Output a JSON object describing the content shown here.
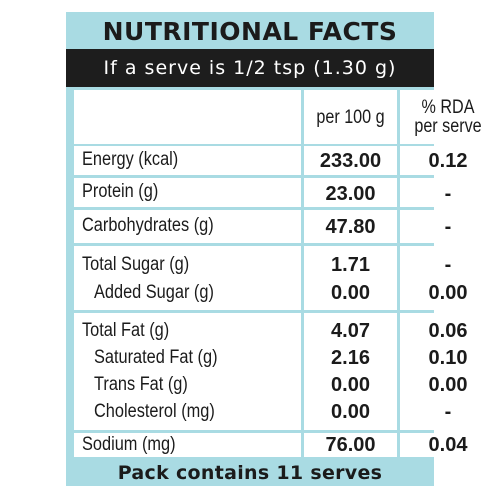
{
  "title": "NUTRITIONAL FACTS",
  "serve_info": "If a serve is 1/2 tsp (1.30 g)",
  "columns": {
    "per100": "per 100 g",
    "rda_line1": "% RDA",
    "rda_line2": "per serve"
  },
  "rows": [
    {
      "label": "Energy (kcal)",
      "per100": "233.00",
      "rda": "0.12"
    },
    {
      "label": "Protein (g)",
      "per100": "23.00",
      "rda": "-"
    },
    {
      "label": "Carbohydrates (g)",
      "per100": "47.80",
      "rda": "-"
    },
    {
      "label": "Total Sugar (g)",
      "per100": "1.71",
      "rda": "-"
    },
    {
      "label": "Added Sugar (g)",
      "per100": "0.00",
      "rda": "0.00"
    },
    {
      "label": "Total Fat (g)",
      "per100": "4.07",
      "rda": "0.06"
    },
    {
      "label": "Saturated Fat (g)",
      "per100": "2.16",
      "rda": "0.10"
    },
    {
      "label": "Trans Fat (g)",
      "per100": "0.00",
      "rda": "0.00"
    },
    {
      "label": "Cholesterol (mg)",
      "per100": "0.00",
      "rda": "-"
    },
    {
      "label": "Sodium (mg)",
      "per100": "76.00",
      "rda": "0.04"
    }
  ],
  "footer": "Pack contains 11 serves",
  "colors": {
    "panel": "#a9dbe3",
    "bar": "#1d1d1d",
    "cell": "#ffffff",
    "text": "#1b1b1b"
  }
}
